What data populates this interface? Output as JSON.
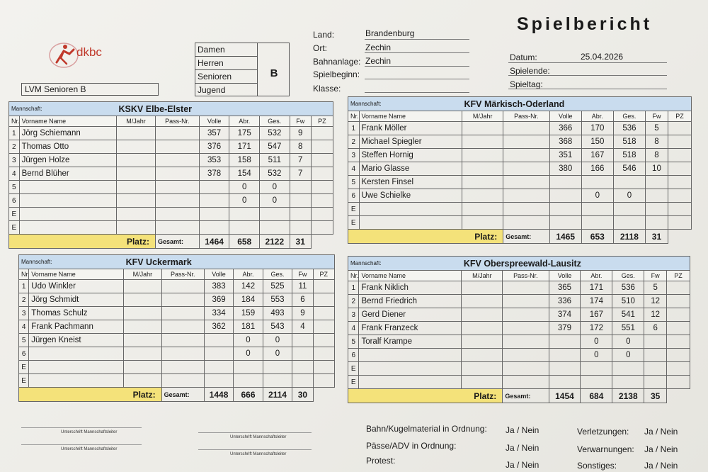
{
  "logo": {
    "text": "dkbc",
    "color": "#c0392b"
  },
  "title": "Spielbericht",
  "category": {
    "labels": [
      "Damen",
      "Herren",
      "Senioren",
      "Jugend"
    ],
    "value": "B"
  },
  "competition": "LVM Senioren B",
  "info_left": [
    {
      "label": "Land:",
      "value": "Brandenburg"
    },
    {
      "label": "Ort:",
      "value": "Zechin"
    },
    {
      "label": "Bahnanlage:",
      "value": "Zechin"
    },
    {
      "label": "Spielbeginn:",
      "value": ""
    },
    {
      "label": "Klasse:",
      "value": ""
    }
  ],
  "info_right": [
    {
      "label": "Datum:",
      "value": "25.04.2026"
    },
    {
      "label": "Spielende:",
      "value": ""
    },
    {
      "label": "Spieltag:",
      "value": ""
    }
  ],
  "column_headers": {
    "nr": "Nr.",
    "name": "Vorname Name",
    "mjahr": "M/Jahr",
    "pass": "Pass-Nr.",
    "volle": "Volle",
    "abr": "Abr.",
    "ges": "Ges.",
    "fw": "Fw",
    "pz": "PZ",
    "mannschaft": "Mannschaft:",
    "platz": "Platz:",
    "gesamt": "Gesamt:"
  },
  "teams": [
    {
      "name": "KSKV Elbe-Elster",
      "players": [
        {
          "nr": "1",
          "name": "Jörg Schiemann",
          "volle": "357",
          "abr": "175",
          "ges": "532",
          "fw": "9"
        },
        {
          "nr": "2",
          "name": "Thomas Otto",
          "volle": "376",
          "abr": "171",
          "ges": "547",
          "fw": "8"
        },
        {
          "nr": "3",
          "name": "Jürgen Holze",
          "volle": "353",
          "abr": "158",
          "ges": "511",
          "fw": "7"
        },
        {
          "nr": "4",
          "name": "Bernd Blüher",
          "volle": "378",
          "abr": "154",
          "ges": "532",
          "fw": "7"
        },
        {
          "nr": "5",
          "name": "",
          "volle": "",
          "abr": "0",
          "ges": "0",
          "fw": ""
        },
        {
          "nr": "6",
          "name": "",
          "volle": "",
          "abr": "0",
          "ges": "0",
          "fw": ""
        },
        {
          "nr": "E",
          "name": "",
          "volle": "",
          "abr": "",
          "ges": "",
          "fw": ""
        },
        {
          "nr": "E",
          "name": "",
          "volle": "",
          "abr": "",
          "ges": "",
          "fw": ""
        }
      ],
      "total": {
        "volle": "1464",
        "abr": "658",
        "ges": "2122",
        "fw": "31"
      }
    },
    {
      "name": "KFV Märkisch-Oderland",
      "players": [
        {
          "nr": "1",
          "name": "Frank Möller",
          "volle": "366",
          "abr": "170",
          "ges": "536",
          "fw": "5"
        },
        {
          "nr": "2",
          "name": "Michael Spiegler",
          "volle": "368",
          "abr": "150",
          "ges": "518",
          "fw": "8"
        },
        {
          "nr": "3",
          "name": "Steffen Hornig",
          "volle": "351",
          "abr": "167",
          "ges": "518",
          "fw": "8"
        },
        {
          "nr": "4",
          "name": "Mario Glasse",
          "volle": "380",
          "abr": "166",
          "ges": "546",
          "fw": "10"
        },
        {
          "nr": "5",
          "name": "Kersten Finsel",
          "volle": "",
          "abr": "",
          "ges": "",
          "fw": ""
        },
        {
          "nr": "6",
          "name": "Uwe Schielke",
          "volle": "",
          "abr": "0",
          "ges": "0",
          "fw": ""
        },
        {
          "nr": "E",
          "name": "",
          "volle": "",
          "abr": "",
          "ges": "",
          "fw": ""
        },
        {
          "nr": "E",
          "name": "",
          "volle": "",
          "abr": "",
          "ges": "",
          "fw": ""
        }
      ],
      "total": {
        "volle": "1465",
        "abr": "653",
        "ges": "2118",
        "fw": "31"
      }
    },
    {
      "name": "KFV Uckermark",
      "players": [
        {
          "nr": "1",
          "name": "Udo Winkler",
          "volle": "383",
          "abr": "142",
          "ges": "525",
          "fw": "11"
        },
        {
          "nr": "2",
          "name": "Jörg Schmidt",
          "volle": "369",
          "abr": "184",
          "ges": "553",
          "fw": "6"
        },
        {
          "nr": "3",
          "name": "Thomas Schulz",
          "volle": "334",
          "abr": "159",
          "ges": "493",
          "fw": "9"
        },
        {
          "nr": "4",
          "name": "Frank Pachmann",
          "volle": "362",
          "abr": "181",
          "ges": "543",
          "fw": "4"
        },
        {
          "nr": "5",
          "name": "Jürgen Kneist",
          "volle": "",
          "abr": "0",
          "ges": "0",
          "fw": ""
        },
        {
          "nr": "6",
          "name": "",
          "volle": "",
          "abr": "0",
          "ges": "0",
          "fw": ""
        },
        {
          "nr": "E",
          "name": "",
          "volle": "",
          "abr": "",
          "ges": "",
          "fw": ""
        },
        {
          "nr": "E",
          "name": "",
          "volle": "",
          "abr": "",
          "ges": "",
          "fw": ""
        }
      ],
      "total": {
        "volle": "1448",
        "abr": "666",
        "ges": "2114",
        "fw": "30"
      }
    },
    {
      "name": "KFV Oberspreewald-Lausitz",
      "players": [
        {
          "nr": "1",
          "name": "Frank Niklich",
          "volle": "365",
          "abr": "171",
          "ges": "536",
          "fw": "5"
        },
        {
          "nr": "2",
          "name": "Bernd Friedrich",
          "volle": "336",
          "abr": "174",
          "ges": "510",
          "fw": "12"
        },
        {
          "nr": "3",
          "name": "Gerd Diener",
          "volle": "374",
          "abr": "167",
          "ges": "541",
          "fw": "12"
        },
        {
          "nr": "4",
          "name": "Frank Franzeck",
          "volle": "379",
          "abr": "172",
          "ges": "551",
          "fw": "6"
        },
        {
          "nr": "5",
          "name": "Toralf Krampe",
          "volle": "",
          "abr": "0",
          "ges": "0",
          "fw": ""
        },
        {
          "nr": "6",
          "name": "",
          "volle": "",
          "abr": "0",
          "ges": "0",
          "fw": ""
        },
        {
          "nr": "E",
          "name": "",
          "volle": "",
          "abr": "",
          "ges": "",
          "fw": ""
        },
        {
          "nr": "E",
          "name": "",
          "volle": "",
          "abr": "",
          "ges": "",
          "fw": ""
        }
      ],
      "total": {
        "volle": "1454",
        "abr": "684",
        "ges": "2138",
        "fw": "35"
      }
    }
  ],
  "signatures": [
    "Unterschrift Mannschaftsleiter",
    "Unterschrift Mannschaftsleiter",
    "Unterschrift Mannschaftsleiter",
    "Unterschrift Mannschaftsleiter"
  ],
  "checks_left": [
    {
      "label": "Bahn/Kugelmaterial in Ordnung:",
      "value": "Ja / Nein"
    },
    {
      "label": "Pässe/ADV in Ordnung:",
      "value": "Ja / Nein"
    },
    {
      "label": "Protest:",
      "value": "Ja / Nein"
    }
  ],
  "checks_right": [
    {
      "label": "Verletzungen:",
      "value": "Ja / Nein"
    },
    {
      "label": "Verwarnungen:",
      "value": "Ja / Nein"
    },
    {
      "label": "Sonstiges:",
      "value": "Ja / Nein"
    }
  ],
  "colors": {
    "header_blue": "#c9dcee",
    "platz_yellow": "#f4e27a"
  }
}
